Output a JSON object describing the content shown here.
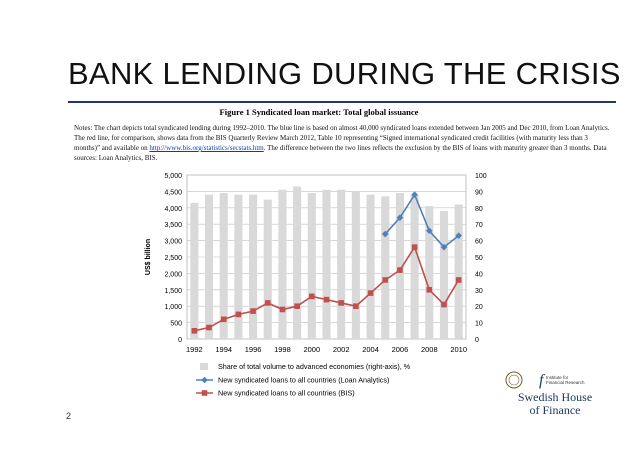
{
  "slide": {
    "title": "BANK LENDING DURING THE CRISIS",
    "page_number": "2"
  },
  "figure": {
    "title": "Figure 1 Syndicated loan market: Total global issuance",
    "notes_prefix": "Notes: The chart depicts total syndicated lending during 1992–2010. The blue line is based on almost 40,000 syndicated loans extended between Jan 2005 and Dec 2010, from Loan Analytics. The red line, for comparison, shows data from the BIS Quarterly Review March 2012, Table 10 representing “Signed international syndicated credit facilities (with maturity less than 3 months)” and available on ",
    "notes_link": "http://www.bis.org/statistics/secstats.htm",
    "notes_suffix": ". The difference between the two lines reflects the exclusion by the BIS of loans with maturity greater than 3 months. Data sources: Loan Analytics, BIS."
  },
  "logo": {
    "text_line1": "Swedish House",
    "text_line2": "of Finance",
    "partner_line1": "Institute for",
    "partner_line2": "Financial Research"
  },
  "colors": {
    "bars": "#d9d9d9",
    "blue": "#4f81bd",
    "red": "#c0504d",
    "rule": "#1f3864"
  },
  "chart_data": {
    "type": "bar",
    "ylabel": "US$ billion",
    "ylim_left": [
      0,
      5000
    ],
    "ylim_right": [
      0,
      100
    ],
    "yticks_left": [
      "0",
      "500",
      "1,000",
      "1,500",
      "2,000",
      "2,500",
      "3,000",
      "3,500",
      "4,000",
      "4,500",
      "5,000"
    ],
    "yticks_right": [
      "0",
      "10",
      "20",
      "30",
      "40",
      "50",
      "60",
      "70",
      "80",
      "90",
      "100"
    ],
    "xtick_labels": [
      "1992",
      "1994",
      "1996",
      "1998",
      "2000",
      "2002",
      "2004",
      "2006",
      "2008",
      "2010"
    ],
    "grid": true,
    "legend_position": "bottom",
    "x": [
      1992,
      1993,
      1994,
      1995,
      1996,
      1997,
      1998,
      1999,
      2000,
      2001,
      2002,
      2003,
      2004,
      2005,
      2006,
      2007,
      2008,
      2009,
      2010
    ],
    "series": [
      {
        "name": "Share of total volume to advanced economies (right-axis), %",
        "kind": "bar",
        "axis": "right",
        "values": [
          83,
          88,
          89,
          88,
          88,
          85,
          91,
          93,
          89,
          91,
          91,
          90,
          88,
          87,
          89,
          88,
          81,
          78,
          82
        ]
      },
      {
        "name": "New syndicated loans to all countries (Loan Analytics)",
        "kind": "line",
        "axis": "left",
        "values": [
          null,
          null,
          null,
          null,
          null,
          null,
          null,
          null,
          null,
          null,
          null,
          null,
          null,
          3200,
          3700,
          4400,
          3300,
          2800,
          3150
        ]
      },
      {
        "name": "New syndicated loans to all countries (BIS)",
        "kind": "line",
        "axis": "left",
        "values": [
          250,
          350,
          600,
          750,
          850,
          1100,
          900,
          1000,
          1300,
          1200,
          1100,
          1000,
          1400,
          1800,
          2100,
          2800,
          1500,
          1050,
          1800
        ]
      }
    ]
  }
}
